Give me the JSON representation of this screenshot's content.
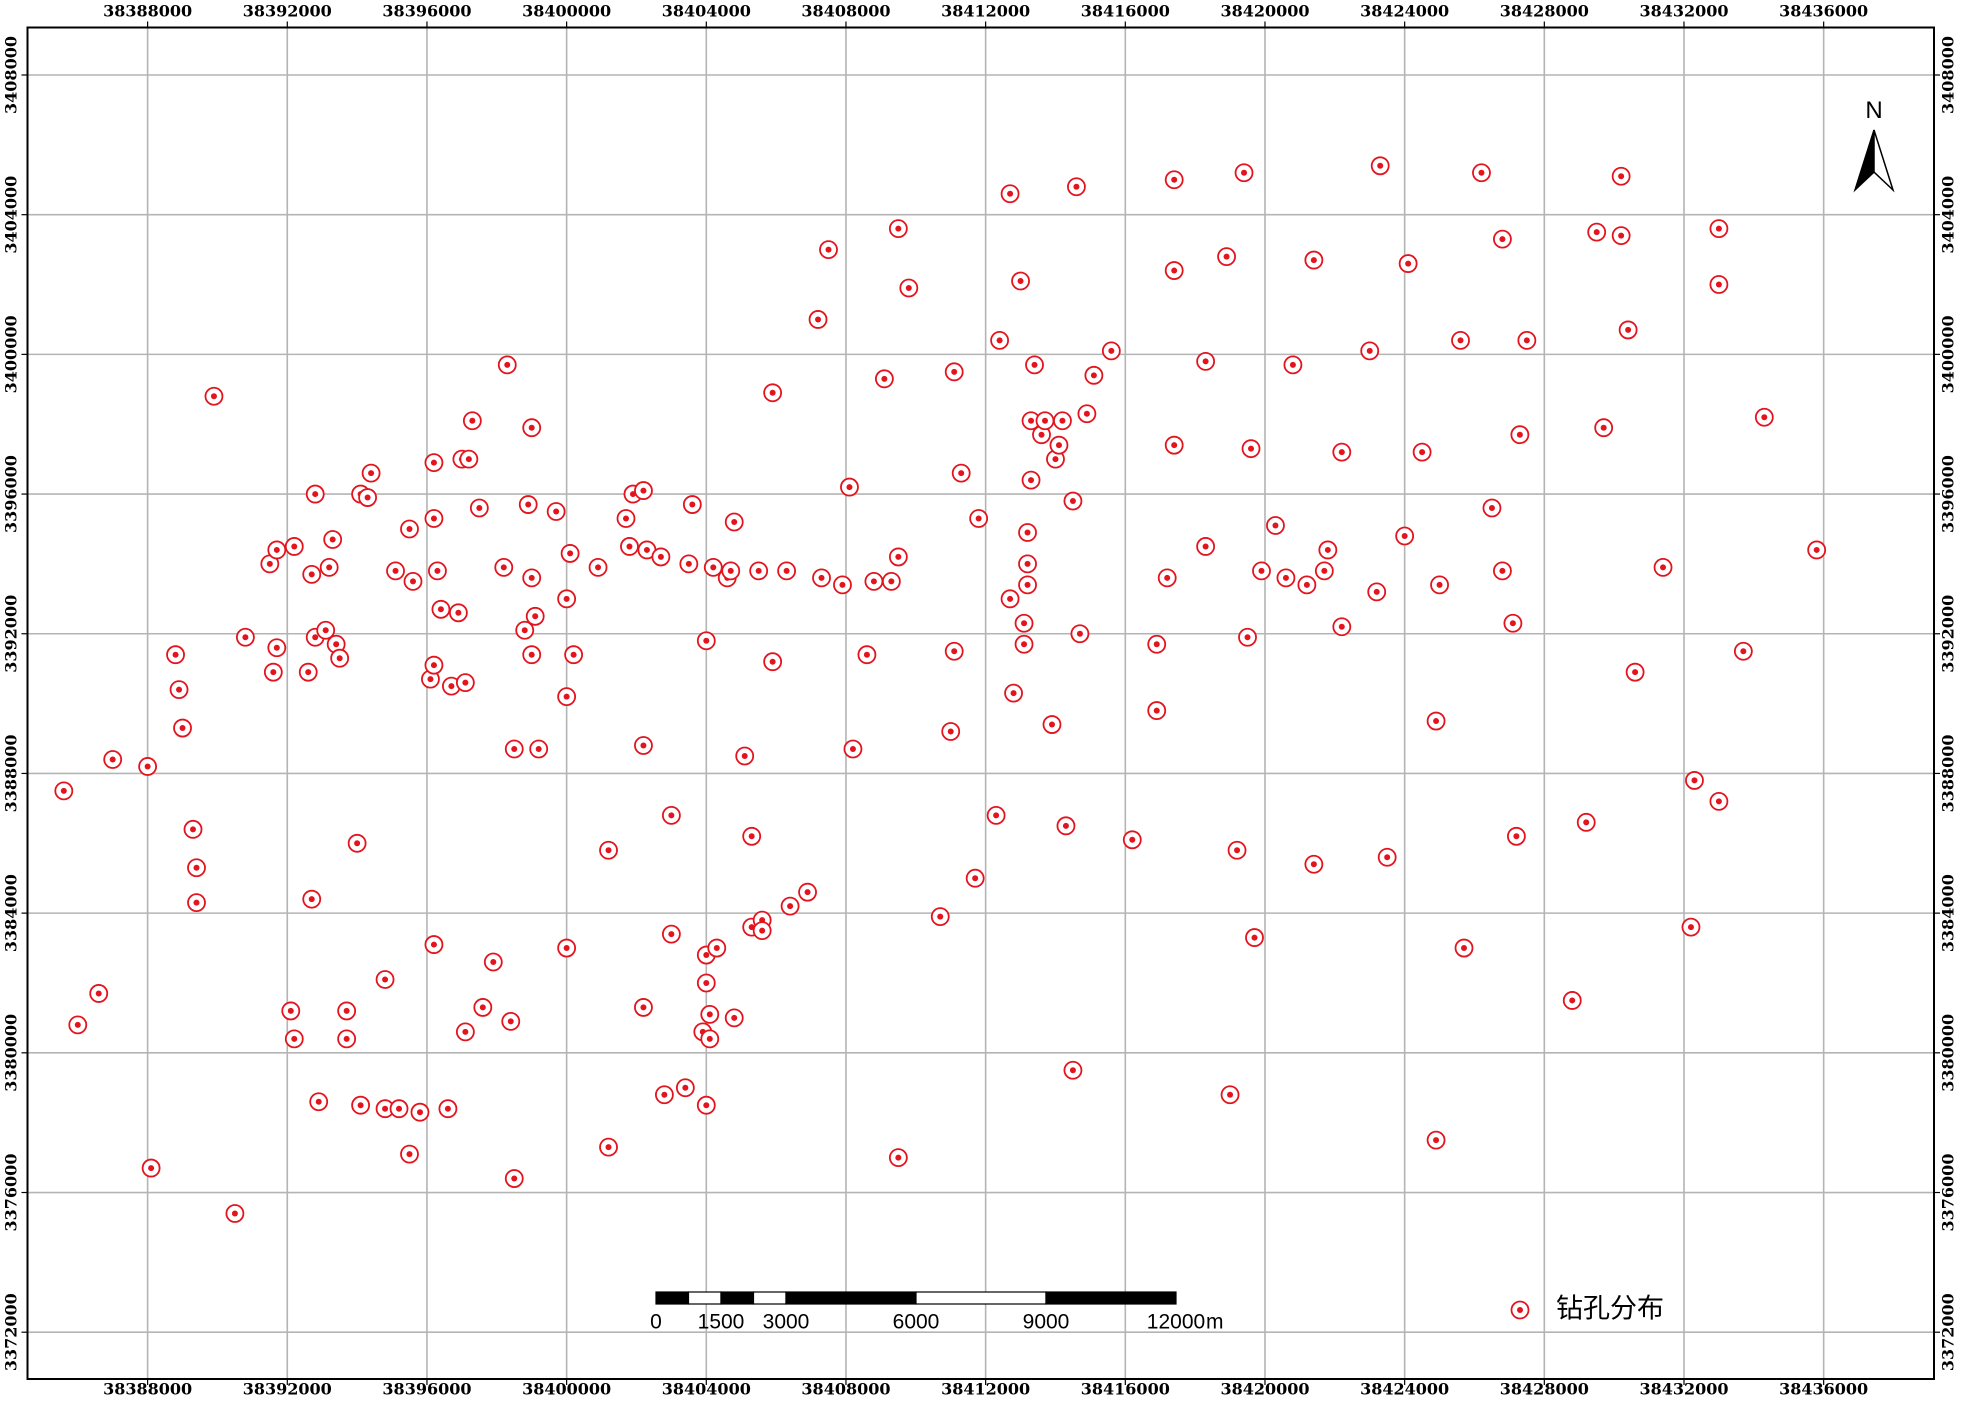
{
  "chart_data": {
    "type": "scatter",
    "x": [
      38385600,
      38386000,
      38386600,
      38387000,
      38388000,
      38388100,
      38388800,
      38388900,
      38389000,
      38389300,
      38389400,
      38389400,
      38389900,
      38390500,
      38390800,
      38391500,
      38391600,
      38391700,
      38391700,
      38392100,
      38392200,
      38392200,
      38392600,
      38392700,
      38392700,
      38392800,
      38392800,
      38392900,
      38393100,
      38393200,
      38393300,
      38393400,
      38393500,
      38393700,
      38393700,
      38394000,
      38394100,
      38394100,
      38394300,
      38394400,
      38394800,
      38394800,
      38395100,
      38395200,
      38395500,
      38395600,
      38395500,
      38395800,
      38396100,
      38396200,
      38396200,
      38396200,
      38396300,
      38396200,
      38396400,
      38396600,
      38396700,
      38396900,
      38397000,
      38397100,
      38397100,
      38397200,
      38397300,
      38397500,
      38397600,
      38397900,
      38398200,
      38398300,
      38398400,
      38398500,
      38398500,
      38398800,
      38398900,
      38399000,
      38399000,
      38399000,
      38399100,
      38399200,
      38399700,
      38400000,
      38400000,
      38400000,
      38400100,
      38400200,
      38400900,
      38401200,
      38401200,
      38401700,
      38401800,
      38401900,
      38402200,
      38402200,
      38402200,
      38402300,
      38402700,
      38402800,
      38403000,
      38403000,
      38403500,
      38403400,
      38403600,
      38404000,
      38403900,
      38404000,
      38404000,
      38404000,
      38404100,
      38404100,
      38404200,
      38404300,
      38404600,
      38404700,
      38404800,
      38404800,
      38405100,
      38405300,
      38405300,
      38405500,
      38405600,
      38405600,
      38405900,
      38405900,
      38406300,
      38406400,
      38406900,
      38407200,
      38407300,
      38407500,
      38407900,
      38408100,
      38408200,
      38408600,
      38408800,
      38409100,
      38409300,
      38409500,
      38409500,
      38409500,
      38409800,
      38410700,
      38411000,
      38411100,
      38411100,
      38411300,
      38411700,
      38411800,
      38412300,
      38412400,
      38412700,
      38412700,
      38412800,
      38413000,
      38413100,
      38413100,
      38413200,
      38413200,
      38413200,
      38413300,
      38413300,
      38413400,
      38413600,
      38413700,
      38413900,
      38414000,
      38414100,
      38414200,
      38414300,
      38414500,
      38414500,
      38414600,
      38414700,
      38414900,
      38415100,
      38415600,
      38416200,
      38416900,
      38416900,
      38417200,
      38417400,
      38417400,
      38417400,
      38418300,
      38418300,
      38418900,
      38419000,
      38419200,
      38419400,
      38419500,
      38419600,
      38419700,
      38419900,
      38420300,
      38420600,
      38420800,
      38421200,
      38421400,
      38421400,
      38421700,
      38421800,
      38422200,
      38422200,
      38423000,
      38423200,
      38423300,
      38423500,
      38424000,
      38424100,
      38424500,
      38424900,
      38424900,
      38425000,
      38425600,
      38425700,
      38426200,
      38426500,
      38426800,
      38426800,
      38427100,
      38427200,
      38427300,
      38427500,
      38428800,
      38429200,
      38429500,
      38429700,
      38430200,
      38430200,
      38430400,
      38430600,
      38431400,
      38432200,
      38432300,
      38433000,
      38433000,
      38433000,
      38433700,
      38434300,
      38435800
    ],
    "series": [
      {
        "name": "钻孔分布",
        "color": "#e3141e",
        "values": [
          3387500,
          3380800,
          3381700,
          3388400,
          3388200,
          3376700,
          3391400,
          3390400,
          3389300,
          3386400,
          3385300,
          3384300,
          3398800,
          3375400,
          3391900,
          3394000,
          3390900,
          3394400,
          3391600,
          3381200,
          3380400,
          3394500,
          3390900,
          3384400,
          3393700,
          3396000,
          3391900,
          3378600,
          3392100,
          3393900,
          3394700,
          3391700,
          3391300,
          3380400,
          3381200,
          3386000,
          3378500,
          3396000,
          3395900,
          3396600,
          3378400,
          3382100,
          3393800,
          3378400,
          3395000,
          3393500,
          3377100,
          3378300,
          3390700,
          3395300,
          3396900,
          3391100,
          3393800,
          3383100,
          3392700,
          3378400,
          3390500,
          3392600,
          3397000,
          3390600,
          3380600,
          3397000,
          3398100,
          3395600,
          3381300,
          3382600,
          3393900,
          3399700,
          3380900,
          3388700,
          3376400,
          3392100,
          3395700,
          3393600,
          3391400,
          3397900,
          3392500,
          3388700,
          3395500,
          3393000,
          3390200,
          3383000,
          3394300,
          3391400,
          3393900,
          3385800,
          3377300,
          3395300,
          3394500,
          3396000,
          3396100,
          3381300,
          3388800,
          3394400,
          3394200,
          3378800,
          3383400,
          3386800,
          3394000,
          3379000,
          3395700,
          3391800,
          3380600,
          3382000,
          3378500,
          3382800,
          3381100,
          3380400,
          3393900,
          3383000,
          3393600,
          3393800,
          3381000,
          3395200,
          3388500,
          3386200,
          3383600,
          3393800,
          3383800,
          3383500,
          3398900,
          3391200,
          3393800,
          3384200,
          3384600,
          3401000,
          3393600,
          3403000,
          3393400,
          3396200,
          3388700,
          3391400,
          3393500,
          3399300,
          3393500,
          3403600,
          3394200,
          3377000,
          3401900,
          3383900,
          3389200,
          3399500,
          3391500,
          3396600,
          3385000,
          3395300,
          3386800,
          3400400,
          3393000,
          3404600,
          3390300,
          3402100,
          3391700,
          3392300,
          3393400,
          3394000,
          3394900,
          3396400,
          3398100,
          3399700,
          3397700,
          3398100,
          3389400,
          3397000,
          3397400,
          3398100,
          3386500,
          3379500,
          3395800,
          3404800,
          3392000,
          3398300,
          3399400,
          3400100,
          3386100,
          3391700,
          3389800,
          3393600,
          3405000,
          3397400,
          3402400,
          3399800,
          3394500,
          3402800,
          3378800,
          3385800,
          3405200,
          3391900,
          3397300,
          3383300,
          3393800,
          3395100,
          3393600,
          3399700,
          3393400,
          3385400,
          3402700,
          3393800,
          3394400,
          3397200,
          3392200,
          3400100,
          3393200,
          3405400,
          3385600,
          3394800,
          3402600,
          3397200,
          3377500,
          3389500,
          3393400,
          3400400,
          3383000,
          3405200,
          3395600,
          3403300,
          3393800,
          3392300,
          3386200,
          3397700,
          3400400,
          3381500,
          3386600,
          3403500,
          3397900,
          3405100,
          3403400,
          3400700,
          3390900,
          3393900,
          3383600,
          3387800,
          3403600,
          3387200,
          3402000,
          3391500,
          3398200,
          3394400
        ]
      }
    ],
    "xlim": [
      38384560,
      38439160
    ],
    "ylim": [
      3370660,
      3409360
    ],
    "xticks": [
      38388000,
      38392000,
      38396000,
      38400000,
      38404000,
      38408000,
      38412000,
      38416000,
      38420000,
      38424000,
      38428000,
      38432000,
      38436000
    ],
    "yticks": [
      3372000,
      3376000,
      3380000,
      3384000,
      3388000,
      3392000,
      3396000,
      3400000,
      3404000,
      3408000
    ],
    "grid": true,
    "legend": "lower right",
    "north_arrow": "N",
    "scale_bar": {
      "ticks": [
        0,
        1500,
        3000,
        6000,
        9000,
        12000
      ],
      "unit": "m"
    }
  }
}
